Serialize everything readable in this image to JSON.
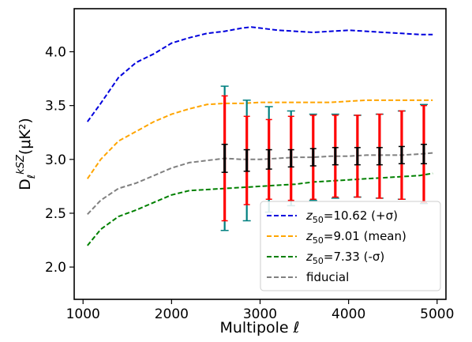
{
  "chart_data": {
    "type": "line",
    "xlabel": "Multipole ℓ",
    "ylabel_main": "D",
    "ylabel_sub": "ℓ",
    "ylabel_sup": "kSZ",
    "ylabel_unit": "(μK²)",
    "xlim": [
      900,
      5100
    ],
    "ylim": [
      1.7,
      4.4
    ],
    "xticks": [
      1000,
      2000,
      3000,
      4000,
      5000
    ],
    "xtick_labels": [
      "1000",
      "2000",
      "3000",
      "4000",
      "5000"
    ],
    "yticks": [
      2.0,
      2.5,
      3.0,
      3.5,
      4.0
    ],
    "ytick_labels": [
      "2.0",
      "2.5",
      "3.0",
      "3.5",
      "4.0"
    ],
    "grid": false,
    "legend_position": "lower-right",
    "series": [
      {
        "name_main": "z",
        "name_sub": "50",
        "name_rest": "=10.62 (+σ)",
        "color": "#0000dd",
        "style": "dashed",
        "x": [
          1050,
          1200,
          1400,
          1600,
          1800,
          2000,
          2200,
          2400,
          2600,
          2800,
          2900,
          3000,
          3200,
          3400,
          3600,
          3800,
          4000,
          4200,
          4400,
          4600,
          4800,
          4950
        ],
        "y": [
          3.35,
          3.52,
          3.76,
          3.9,
          3.98,
          4.08,
          4.13,
          4.17,
          4.19,
          4.22,
          4.23,
          4.22,
          4.2,
          4.19,
          4.18,
          4.19,
          4.2,
          4.19,
          4.18,
          4.17,
          4.16,
          4.16
        ]
      },
      {
        "name_main": "z",
        "name_sub": "50",
        "name_rest": "=9.01 (mean)",
        "color": "#ffa500",
        "style": "dashed",
        "x": [
          1050,
          1200,
          1400,
          1600,
          1800,
          2000,
          2200,
          2400,
          2600,
          2800,
          3000,
          3200,
          3400,
          3600,
          3800,
          4000,
          4200,
          4400,
          4600,
          4800,
          4950
        ],
        "y": [
          2.82,
          3.0,
          3.17,
          3.26,
          3.35,
          3.42,
          3.47,
          3.51,
          3.52,
          3.52,
          3.53,
          3.53,
          3.53,
          3.53,
          3.53,
          3.54,
          3.55,
          3.55,
          3.55,
          3.55,
          3.55
        ]
      },
      {
        "name_main": "z",
        "name_sub": "50",
        "name_rest": "=7.33 (-σ)",
        "color": "#008000",
        "style": "dashed",
        "x": [
          1050,
          1200,
          1400,
          1600,
          1800,
          2000,
          2200,
          2400,
          2600,
          2800,
          3000,
          3200,
          3400,
          3600,
          3800,
          4000,
          4200,
          4400,
          4600,
          4800,
          4950
        ],
        "y": [
          2.2,
          2.35,
          2.47,
          2.53,
          2.6,
          2.67,
          2.71,
          2.72,
          2.73,
          2.74,
          2.75,
          2.76,
          2.77,
          2.79,
          2.8,
          2.81,
          2.82,
          2.83,
          2.84,
          2.85,
          2.87
        ]
      },
      {
        "name_main": "fiducial",
        "name_sub": "",
        "name_rest": "",
        "color": "#808080",
        "style": "dashed",
        "x": [
          1050,
          1200,
          1400,
          1600,
          1800,
          2000,
          2200,
          2400,
          2600,
          2800,
          3000,
          3200,
          3400,
          3600,
          3800,
          4000,
          4200,
          4400,
          4600,
          4800,
          4950
        ],
        "y": [
          2.49,
          2.62,
          2.73,
          2.78,
          2.85,
          2.92,
          2.97,
          2.99,
          3.01,
          3.0,
          3.0,
          3.01,
          3.02,
          3.02,
          3.03,
          3.03,
          3.04,
          3.04,
          3.04,
          3.05,
          3.06
        ]
      }
    ],
    "error_bars": {
      "x": [
        2600,
        2850,
        3100,
        3350,
        3600,
        3850,
        4100,
        4350,
        4600,
        4850
      ],
      "y": [
        3.01,
        2.99,
        3.0,
        3.01,
        3.02,
        3.03,
        3.03,
        3.03,
        3.04,
        3.05
      ],
      "outer_err": [
        0.67,
        0.56,
        0.49,
        0.44,
        0.4,
        0.39,
        0.38,
        0.39,
        0.41,
        0.46
      ],
      "red_err": [
        0.58,
        0.41,
        0.37,
        0.39,
        0.39,
        0.38,
        0.38,
        0.39,
        0.41,
        0.45
      ],
      "inner_err": [
        0.13,
        0.1,
        0.09,
        0.08,
        0.08,
        0.08,
        0.08,
        0.08,
        0.08,
        0.09
      ],
      "outer_color": "#008080",
      "red_color": "#ff0000",
      "inner_color": "#000000"
    }
  }
}
